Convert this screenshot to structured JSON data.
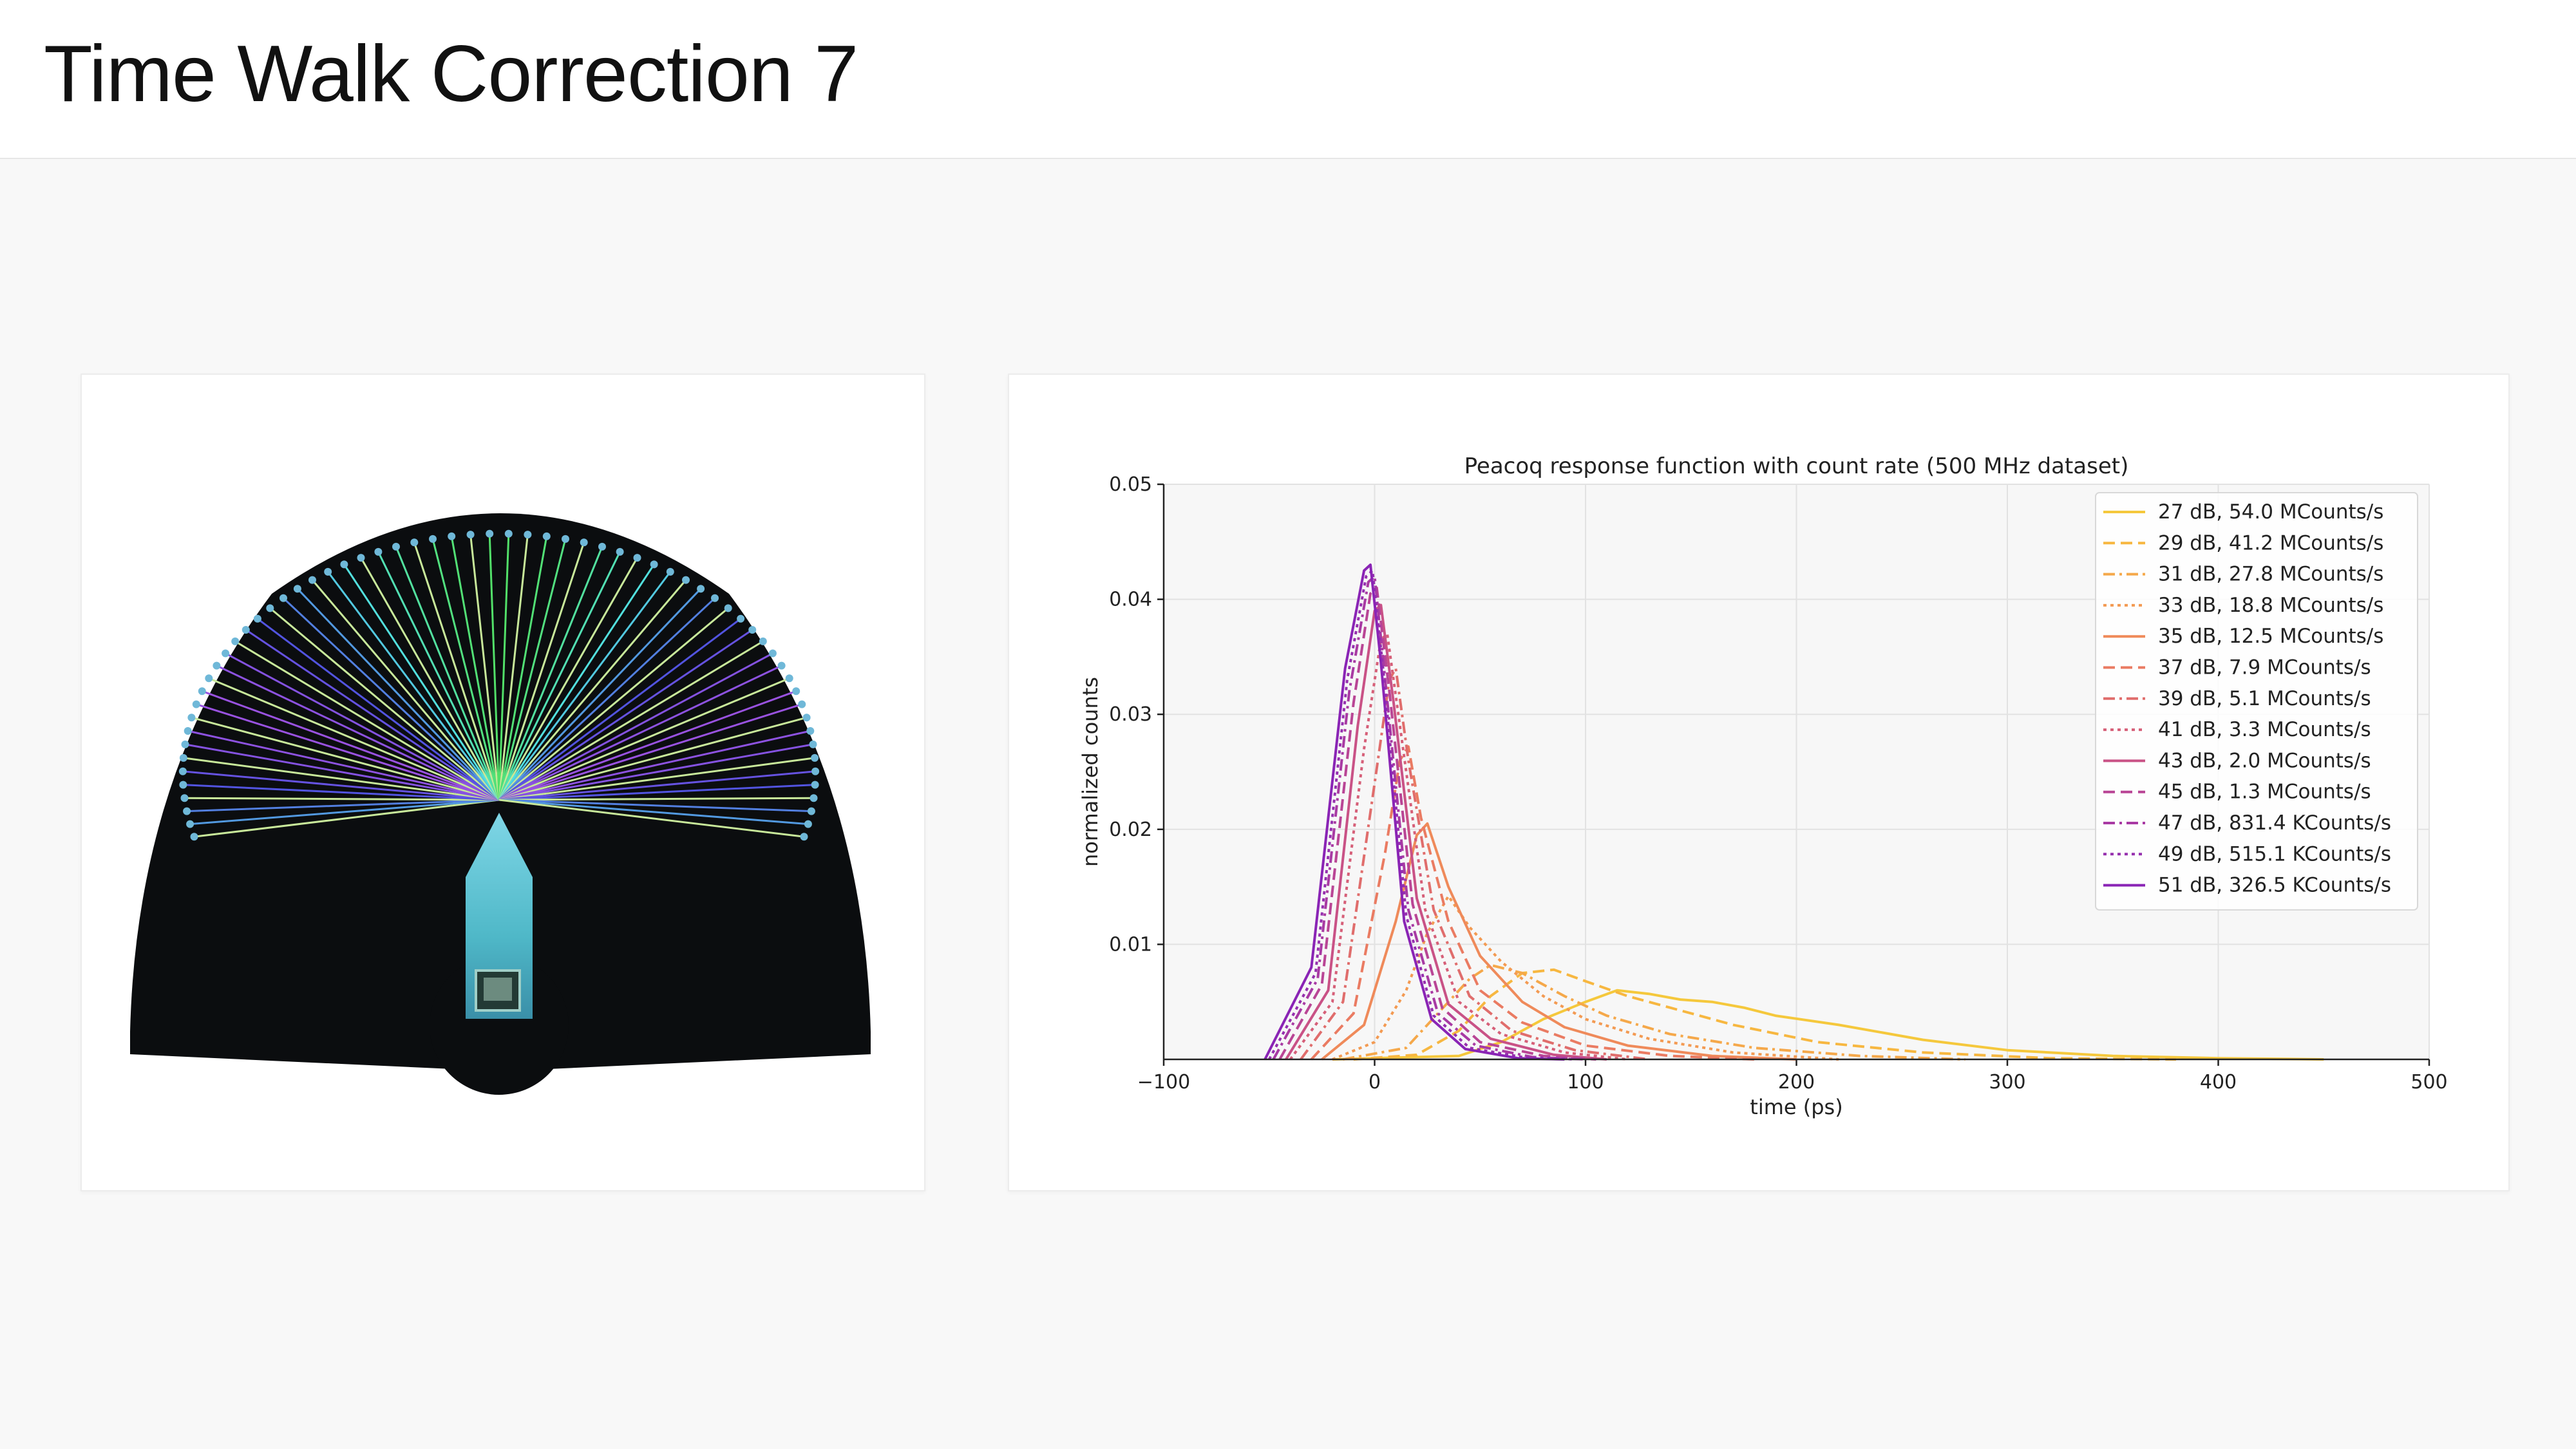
{
  "header": {
    "title": "Time Walk Correction 7"
  },
  "chart_data": {
    "type": "line",
    "title": "Peacoq response function with count rate (500 MHz dataset)",
    "xlabel": "time (ps)",
    "ylabel": "normalized counts",
    "xlim": [
      -100,
      500
    ],
    "ylim": [
      0,
      0.05
    ],
    "xticks": [
      -100,
      0,
      100,
      200,
      300,
      400,
      500
    ],
    "xtick_labels": [
      "−100",
      "0",
      "100",
      "200",
      "300",
      "400",
      "500"
    ],
    "yticks": [
      0.01,
      0.02,
      0.03,
      0.04,
      0.05
    ],
    "ytick_labels": [
      "0.01",
      "0.02",
      "0.03",
      "0.04",
      "0.05"
    ],
    "grid": true,
    "legend_position": "top-right",
    "series": [
      {
        "name": "27 dB, 54.0 MCounts/s",
        "color": "#f5c83c",
        "dash": "solid",
        "points": [
          [
            -20,
            0
          ],
          [
            40,
            0.0003
          ],
          [
            60,
            0.0015
          ],
          [
            80,
            0.0035
          ],
          [
            100,
            0.005
          ],
          [
            115,
            0.006
          ],
          [
            130,
            0.0057
          ],
          [
            145,
            0.0052
          ],
          [
            160,
            0.005
          ],
          [
            175,
            0.0045
          ],
          [
            190,
            0.0038
          ],
          [
            220,
            0.003
          ],
          [
            260,
            0.0017
          ],
          [
            300,
            0.0008
          ],
          [
            350,
            0.0003
          ],
          [
            400,
            0.0001
          ],
          [
            450,
            0
          ]
        ]
      },
      {
        "name": "29 dB, 41.2 MCounts/s",
        "color": "#f7b740",
        "dash": "dash",
        "points": [
          [
            -10,
            0
          ],
          [
            20,
            0.0004
          ],
          [
            40,
            0.0025
          ],
          [
            55,
            0.0055
          ],
          [
            70,
            0.0075
          ],
          [
            85,
            0.0078
          ],
          [
            100,
            0.0068
          ],
          [
            120,
            0.0055
          ],
          [
            140,
            0.0045
          ],
          [
            170,
            0.003
          ],
          [
            210,
            0.0015
          ],
          [
            260,
            0.0006
          ],
          [
            320,
            0.0001
          ],
          [
            380,
            0
          ]
        ]
      },
      {
        "name": "31 dB, 27.8 MCounts/s",
        "color": "#f5a84a",
        "dash": "dashdot",
        "points": [
          [
            -15,
            0
          ],
          [
            15,
            0.001
          ],
          [
            30,
            0.004
          ],
          [
            45,
            0.007
          ],
          [
            55,
            0.0082
          ],
          [
            70,
            0.0075
          ],
          [
            90,
            0.0055
          ],
          [
            110,
            0.0038
          ],
          [
            140,
            0.0022
          ],
          [
            180,
            0.001
          ],
          [
            230,
            0.0003
          ],
          [
            280,
            0
          ]
        ]
      },
      {
        "name": "33 dB, 18.8 MCounts/s",
        "color": "#f39a52",
        "dash": "dot",
        "points": [
          [
            -20,
            0
          ],
          [
            0,
            0.0015
          ],
          [
            15,
            0.006
          ],
          [
            25,
            0.011
          ],
          [
            35,
            0.0142
          ],
          [
            45,
            0.0115
          ],
          [
            60,
            0.0085
          ],
          [
            80,
            0.0055
          ],
          [
            100,
            0.0035
          ],
          [
            130,
            0.0018
          ],
          [
            170,
            0.0006
          ],
          [
            220,
            0
          ]
        ]
      },
      {
        "name": "35 dB, 12.5 MCounts/s",
        "color": "#ef8a5a",
        "dash": "solid",
        "points": [
          [
            -25,
            0
          ],
          [
            -5,
            0.003
          ],
          [
            10,
            0.012
          ],
          [
            20,
            0.0195
          ],
          [
            25,
            0.0205
          ],
          [
            35,
            0.015
          ],
          [
            50,
            0.009
          ],
          [
            70,
            0.005
          ],
          [
            90,
            0.0028
          ],
          [
            120,
            0.0012
          ],
          [
            160,
            0.0003
          ],
          [
            200,
            0
          ]
        ]
      },
      {
        "name": "37 dB, 7.9 MCounts/s",
        "color": "#ea7b62",
        "dash": "dash",
        "points": [
          [
            -30,
            0
          ],
          [
            -10,
            0.004
          ],
          [
            5,
            0.018
          ],
          [
            12,
            0.026
          ],
          [
            16,
            0.0272
          ],
          [
            22,
            0.021
          ],
          [
            35,
            0.012
          ],
          [
            50,
            0.006
          ],
          [
            70,
            0.0032
          ],
          [
            100,
            0.0012
          ],
          [
            140,
            0.0003
          ],
          [
            180,
            0
          ]
        ]
      },
      {
        "name": "39 dB, 5.1 MCounts/s",
        "color": "#e06d6c",
        "dash": "dashdot",
        "points": [
          [
            -35,
            0
          ],
          [
            -15,
            0.005
          ],
          [
            0,
            0.024
          ],
          [
            7,
            0.033
          ],
          [
            10,
            0.034
          ],
          [
            16,
            0.026
          ],
          [
            28,
            0.013
          ],
          [
            45,
            0.0055
          ],
          [
            65,
            0.0025
          ],
          [
            95,
            0.0008
          ],
          [
            130,
            0
          ]
        ]
      },
      {
        "name": "41 dB, 3.3 MCounts/s",
        "color": "#d65f78",
        "dash": "dot",
        "points": [
          [
            -40,
            0
          ],
          [
            -20,
            0.005
          ],
          [
            -5,
            0.027
          ],
          [
            3,
            0.0365
          ],
          [
            6,
            0.037
          ],
          [
            12,
            0.029
          ],
          [
            24,
            0.013
          ],
          [
            40,
            0.005
          ],
          [
            60,
            0.0022
          ],
          [
            90,
            0.0006
          ],
          [
            120,
            0
          ]
        ]
      },
      {
        "name": "43 dB, 2.0 MCounts/s",
        "color": "#c95286",
        "dash": "solid",
        "points": [
          [
            -42,
            0
          ],
          [
            -22,
            0.006
          ],
          [
            -8,
            0.029
          ],
          [
            0,
            0.039
          ],
          [
            3,
            0.0395
          ],
          [
            9,
            0.031
          ],
          [
            20,
            0.014
          ],
          [
            35,
            0.0048
          ],
          [
            55,
            0.0018
          ],
          [
            85,
            0.0004
          ],
          [
            110,
            0
          ]
        ]
      },
      {
        "name": "45 dB, 1.3 MCounts/s",
        "color": "#b94595",
        "dash": "dash",
        "points": [
          [
            -45,
            0
          ],
          [
            -25,
            0.0065
          ],
          [
            -10,
            0.031
          ],
          [
            -2,
            0.0405
          ],
          [
            1,
            0.041
          ],
          [
            7,
            0.032
          ],
          [
            18,
            0.0135
          ],
          [
            32,
            0.0045
          ],
          [
            50,
            0.0015
          ],
          [
            80,
            0.0003
          ],
          [
            105,
            0
          ]
        ]
      },
      {
        "name": "47 dB, 831.4 KCounts/s",
        "color": "#a83aa3",
        "dash": "dashdot",
        "points": [
          [
            -48,
            0
          ],
          [
            -27,
            0.007
          ],
          [
            -12,
            0.032
          ],
          [
            -3,
            0.0415
          ],
          [
            0,
            0.042
          ],
          [
            5,
            0.033
          ],
          [
            16,
            0.013
          ],
          [
            30,
            0.004
          ],
          [
            48,
            0.0012
          ],
          [
            75,
            0.0002
          ],
          [
            100,
            0
          ]
        ]
      },
      {
        "name": "49 dB, 515.1 KCounts/s",
        "color": "#9630ae",
        "dash": "dot",
        "points": [
          [
            -50,
            0
          ],
          [
            -28,
            0.0075
          ],
          [
            -13,
            0.033
          ],
          [
            -4,
            0.042
          ],
          [
            -1,
            0.0425
          ],
          [
            4,
            0.034
          ],
          [
            15,
            0.0125
          ],
          [
            28,
            0.0038
          ],
          [
            45,
            0.001
          ],
          [
            70,
            0.0002
          ],
          [
            95,
            0
          ]
        ]
      },
      {
        "name": "51 dB, 326.5 KCounts/s",
        "color": "#8a24b5",
        "dash": "solid",
        "points": [
          [
            -52,
            0
          ],
          [
            -30,
            0.008
          ],
          [
            -14,
            0.034
          ],
          [
            -5,
            0.0425
          ],
          [
            -2,
            0.043
          ],
          [
            3,
            0.0345
          ],
          [
            14,
            0.012
          ],
          [
            27,
            0.0035
          ],
          [
            43,
            0.0009
          ],
          [
            68,
            0.0001
          ],
          [
            90,
            0
          ]
        ]
      }
    ]
  }
}
